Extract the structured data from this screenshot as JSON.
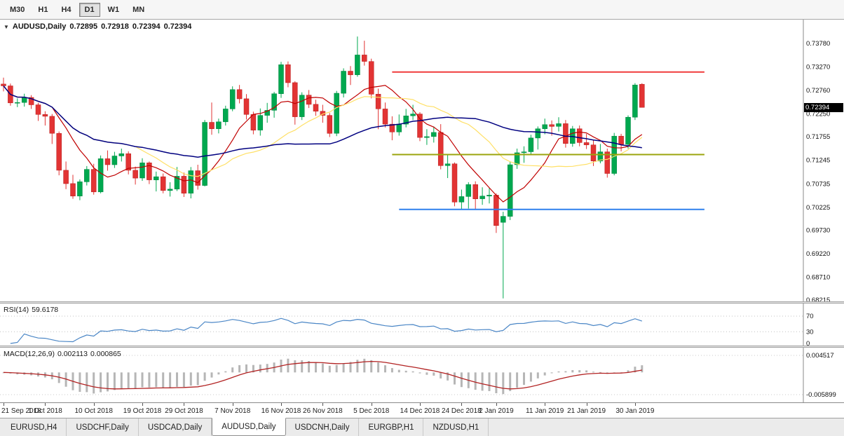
{
  "toolbar": {
    "timeframes": [
      {
        "label": "M30",
        "active": false
      },
      {
        "label": "H1",
        "active": false
      },
      {
        "label": "H4",
        "active": false
      },
      {
        "label": "D1",
        "active": true
      },
      {
        "label": "W1",
        "active": false
      },
      {
        "label": "MN",
        "active": false
      }
    ]
  },
  "icons": {
    "collapse": "▼"
  },
  "chart": {
    "title": {
      "symbol_period": "AUDUSD,Daily",
      "open": "0.72895",
      "high": "0.72918",
      "low": "0.72394",
      "close": "0.72394"
    },
    "price_axis": {
      "labels": [
        "0.73780",
        "0.73270",
        "0.72760",
        "0.72250",
        "0.71755",
        "0.71245",
        "0.70735",
        "0.70225",
        "0.69730",
        "0.69220",
        "0.68710",
        "0.68215"
      ],
      "current": "0.72394"
    },
    "colors": {
      "bull": "#00A84F",
      "bull_border": "#008540",
      "bear": "#E23434",
      "bear_border": "#B71C1C",
      "axis_text": "#111111",
      "badge_bg": "#000000"
    }
  },
  "rsi": {
    "name": "RSI(14)",
    "value": "59.6178",
    "levels": [
      70,
      30,
      0
    ],
    "color": "#4A86C6"
  },
  "macd": {
    "name": "MACD(12,26,9)",
    "value_main": "0.002113",
    "value_signal": "0.000865",
    "axis_labels": [
      "0.004517",
      "-0.005899"
    ],
    "hist_color": "#b6b6b6",
    "signal_color": "#B22222"
  },
  "tabs": [
    {
      "label": "EURUSD,H4",
      "active": false
    },
    {
      "label": "USDCHF,Daily",
      "active": false
    },
    {
      "label": "USDCAD,Daily",
      "active": false
    },
    {
      "label": "AUDUSD,Daily",
      "active": true
    },
    {
      "label": "USDCNH,Daily",
      "active": false
    },
    {
      "label": "EURGBP,H1",
      "active": false
    },
    {
      "label": "NZDUSD,H1",
      "active": false
    }
  ],
  "chart_data": {
    "type": "candlestick",
    "symbol": "AUDUSD",
    "timeframe": "Daily",
    "ohlc_order": "open,high,low,close",
    "ylim": [
      0.68185,
      0.74297
    ],
    "candles": [
      [
        0.729,
        0.7304,
        0.7274,
        0.7286
      ],
      [
        0.7286,
        0.7291,
        0.7243,
        0.7249
      ],
      [
        0.7249,
        0.7259,
        0.724,
        0.725
      ],
      [
        0.725,
        0.7269,
        0.7241,
        0.7261
      ],
      [
        0.7261,
        0.7266,
        0.7236,
        0.7245
      ],
      [
        0.7245,
        0.7249,
        0.721,
        0.7224
      ],
      [
        0.7224,
        0.7231,
        0.72,
        0.722
      ],
      [
        0.722,
        0.7225,
        0.716,
        0.7183
      ],
      [
        0.7183,
        0.7187,
        0.7092,
        0.7103
      ],
      [
        0.7103,
        0.7122,
        0.7062,
        0.7074
      ],
      [
        0.7074,
        0.7093,
        0.7041,
        0.7047
      ],
      [
        0.7047,
        0.7083,
        0.7038,
        0.7078
      ],
      [
        0.7078,
        0.7112,
        0.707,
        0.7105
      ],
      [
        0.7105,
        0.7117,
        0.705,
        0.7056
      ],
      [
        0.7056,
        0.7135,
        0.7053,
        0.7128
      ],
      [
        0.7128,
        0.7146,
        0.7102,
        0.7115
      ],
      [
        0.7115,
        0.7143,
        0.7108,
        0.7134
      ],
      [
        0.7134,
        0.715,
        0.7122,
        0.7139
      ],
      [
        0.7139,
        0.7144,
        0.7094,
        0.7103
      ],
      [
        0.7103,
        0.7111,
        0.7072,
        0.7086
      ],
      [
        0.7086,
        0.7129,
        0.708,
        0.7119
      ],
      [
        0.7119,
        0.7122,
        0.7073,
        0.7082
      ],
      [
        0.7082,
        0.71,
        0.7057,
        0.7089
      ],
      [
        0.7089,
        0.7096,
        0.7053,
        0.7059
      ],
      [
        0.7059,
        0.7077,
        0.7046,
        0.7062
      ],
      [
        0.7062,
        0.711,
        0.7058,
        0.709
      ],
      [
        0.709,
        0.7098,
        0.7045,
        0.7053
      ],
      [
        0.7053,
        0.711,
        0.7042,
        0.7102
      ],
      [
        0.7102,
        0.7115,
        0.7061,
        0.707
      ],
      [
        0.707,
        0.7212,
        0.7068,
        0.7207
      ],
      [
        0.7207,
        0.725,
        0.718,
        0.7193
      ],
      [
        0.7193,
        0.7215,
        0.7183,
        0.7208
      ],
      [
        0.7208,
        0.7243,
        0.72,
        0.7236
      ],
      [
        0.7236,
        0.7285,
        0.7231,
        0.7278
      ],
      [
        0.7278,
        0.7288,
        0.7248,
        0.7258
      ],
      [
        0.7258,
        0.7268,
        0.7213,
        0.7224
      ],
      [
        0.7224,
        0.723,
        0.7181,
        0.719
      ],
      [
        0.719,
        0.7237,
        0.7178,
        0.7222
      ],
      [
        0.7222,
        0.7249,
        0.7206,
        0.7233
      ],
      [
        0.7233,
        0.7273,
        0.7217,
        0.7269
      ],
      [
        0.7269,
        0.7338,
        0.726,
        0.7332
      ],
      [
        0.7332,
        0.7339,
        0.7283,
        0.7293
      ],
      [
        0.7293,
        0.7296,
        0.7202,
        0.7219
      ],
      [
        0.7219,
        0.7272,
        0.7212,
        0.7266
      ],
      [
        0.7266,
        0.7277,
        0.7238,
        0.7246
      ],
      [
        0.7246,
        0.7256,
        0.7221,
        0.7231
      ],
      [
        0.7231,
        0.7245,
        0.7206,
        0.7222
      ],
      [
        0.7222,
        0.7227,
        0.7175,
        0.7183
      ],
      [
        0.7183,
        0.7275,
        0.7177,
        0.727
      ],
      [
        0.727,
        0.7324,
        0.7261,
        0.7318
      ],
      [
        0.7318,
        0.7329,
        0.7288,
        0.731
      ],
      [
        0.731,
        0.7393,
        0.7306,
        0.7353
      ],
      [
        0.7353,
        0.7384,
        0.733,
        0.7339
      ],
      [
        0.7339,
        0.7345,
        0.7259,
        0.7268
      ],
      [
        0.7268,
        0.728,
        0.7192,
        0.7236
      ],
      [
        0.7236,
        0.725,
        0.7196,
        0.7203
      ],
      [
        0.7203,
        0.722,
        0.7168,
        0.7186
      ],
      [
        0.7186,
        0.7224,
        0.7178,
        0.7203
      ],
      [
        0.7203,
        0.7236,
        0.7196,
        0.7221
      ],
      [
        0.7221,
        0.7245,
        0.7212,
        0.7225
      ],
      [
        0.7225,
        0.7229,
        0.7166,
        0.7174
      ],
      [
        0.7174,
        0.7192,
        0.7158,
        0.7176
      ],
      [
        0.7176,
        0.7198,
        0.7163,
        0.7185
      ],
      [
        0.7185,
        0.7203,
        0.7105,
        0.7113
      ],
      [
        0.7113,
        0.7137,
        0.7086,
        0.7117
      ],
      [
        0.7117,
        0.712,
        0.7025,
        0.7034
      ],
      [
        0.7034,
        0.7061,
        0.7018,
        0.7046
      ],
      [
        0.7046,
        0.7077,
        0.702,
        0.7072
      ],
      [
        0.7072,
        0.7079,
        0.7017,
        0.7041
      ],
      [
        0.7041,
        0.7066,
        0.7028,
        0.7047
      ],
      [
        0.7047,
        0.7064,
        0.7031,
        0.7049
      ],
      [
        0.7049,
        0.7053,
        0.6967,
        0.6983
      ],
      [
        0.699,
        0.7013,
        0.6825,
        0.7003
      ],
      [
        0.7003,
        0.7122,
        0.6995,
        0.7115
      ],
      [
        0.7115,
        0.715,
        0.7106,
        0.7141
      ],
      [
        0.7141,
        0.7155,
        0.7119,
        0.7143
      ],
      [
        0.7143,
        0.718,
        0.7136,
        0.7173
      ],
      [
        0.7173,
        0.7198,
        0.7148,
        0.7193
      ],
      [
        0.7193,
        0.7215,
        0.7181,
        0.7202
      ],
      [
        0.7202,
        0.7211,
        0.7178,
        0.7198
      ],
      [
        0.7198,
        0.7218,
        0.7187,
        0.7204
      ],
      [
        0.7204,
        0.7212,
        0.7152,
        0.7161
      ],
      [
        0.7161,
        0.7199,
        0.7154,
        0.7193
      ],
      [
        0.7193,
        0.72,
        0.7155,
        0.7163
      ],
      [
        0.7163,
        0.7182,
        0.7149,
        0.7158
      ],
      [
        0.7158,
        0.7168,
        0.7112,
        0.7123
      ],
      [
        0.7123,
        0.716,
        0.7118,
        0.7143
      ],
      [
        0.7143,
        0.715,
        0.7087,
        0.7096
      ],
      [
        0.7096,
        0.7184,
        0.7092,
        0.7177
      ],
      [
        0.7177,
        0.7182,
        0.7144,
        0.7159
      ],
      [
        0.7159,
        0.7222,
        0.715,
        0.7218
      ],
      [
        0.7218,
        0.7292,
        0.7212,
        0.7288
      ],
      [
        0.72895,
        0.72918,
        0.72394,
        0.72394
      ]
    ],
    "date_ticks": [
      {
        "i": 0,
        "label": "21 Sep 2018"
      },
      {
        "i": 6,
        "label": "1 Oct 2018"
      },
      {
        "i": 13,
        "label": "10 Oct 2018"
      },
      {
        "i": 20,
        "label": "19 Oct 2018"
      },
      {
        "i": 26,
        "label": "29 Oct 2018"
      },
      {
        "i": 33,
        "label": "7 Nov 2018"
      },
      {
        "i": 40,
        "label": "16 Nov 2018"
      },
      {
        "i": 46,
        "label": "26 Nov 2018"
      },
      {
        "i": 53,
        "label": "5 Dec 2018"
      },
      {
        "i": 60,
        "label": "14 Dec 2018"
      },
      {
        "i": 66,
        "label": "24 Dec 2018"
      },
      {
        "i": 71,
        "label": "2 Jan 2019"
      },
      {
        "i": 78,
        "label": "11 Jan 2019"
      },
      {
        "i": 84,
        "label": "21 Jan 2019"
      },
      {
        "i": 91,
        "label": "30 Jan 2019"
      }
    ],
    "horizontal_lines": [
      {
        "price": 0.7316,
        "color": "#F03B3B",
        "i1": 56,
        "i2": 101
      },
      {
        "price": 0.7137,
        "color": "#9BA40E",
        "i1": 56,
        "i2": 101
      },
      {
        "price": 0.7018,
        "color": "#2F80ED",
        "i1": 57,
        "i2": 101
      }
    ],
    "moving_averages": [
      {
        "period": 8,
        "color": "#C00000"
      },
      {
        "period": 20,
        "color": "#FFE066"
      },
      {
        "period": 40,
        "color": "#000080"
      }
    ],
    "indicators": [
      {
        "name": "RSI",
        "period": 14,
        "last_value": 59.6178
      },
      {
        "name": "MACD",
        "params": "12,26,9",
        "last_main": 0.002113,
        "last_signal": 0.000865
      }
    ]
  }
}
